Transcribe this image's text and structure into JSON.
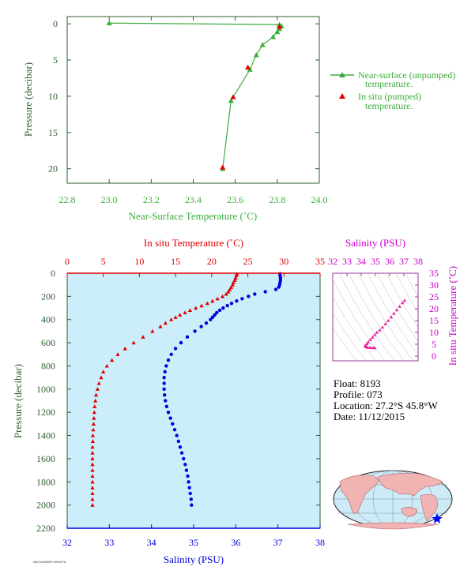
{
  "colors": {
    "green": "#3cae3c",
    "red": "#e00000",
    "blue": "#0000dd",
    "magenta": "#cc00cc",
    "pink": "#ee2299",
    "panel": "#cceefa",
    "axis": "#2f5f2f",
    "land": "#f2b3b3",
    "ocean": "#cdebf7"
  },
  "info": {
    "float": "Float:  8193",
    "profile": "Profile:  073",
    "location": "Location:  27.2°S  45.8°W",
    "date": "Date:  11/12/2015"
  },
  "footer_code": "AW7#2008P0 0000078",
  "chart_data": [
    {
      "type": "line",
      "xlabel": "Near-Surface Temperature (˚C)",
      "ylabel": "Pressure (decibar)",
      "xlim": [
        22.8,
        24.0
      ],
      "ylim": [
        22,
        -1
      ],
      "xticks": [
        "22.8",
        "23.0",
        "23.2",
        "23.4",
        "23.6",
        "23.8",
        "24.0"
      ],
      "yticks": [
        "0",
        "5",
        "10",
        "15",
        "20"
      ],
      "legend_position": "right",
      "series": [
        {
          "name": "Near-surface (unpumped) temperature.",
          "marker": "triangle-line",
          "x": [
            23.0,
            23.81,
            23.82,
            23.81,
            23.8,
            23.78,
            23.73,
            23.7,
            23.67,
            23.58,
            23.54
          ],
          "y": [
            -0.1,
            0.1,
            0.3,
            0.7,
            1.1,
            1.8,
            2.9,
            4.3,
            6.3,
            10.6,
            20.0
          ]
        },
        {
          "name": "In situ (pumped) temperature.",
          "marker": "triangle",
          "x": [
            23.81,
            23.66,
            23.59,
            23.54
          ],
          "y": [
            0.4,
            6.0,
            10.1,
            19.8
          ]
        }
      ]
    },
    {
      "type": "scatter",
      "x_top_label": "In situ Temperature (˚C)",
      "x_bottom_label": "Salinity (PSU)",
      "ylabel": "Pressure (decibar)",
      "ylim": [
        2200,
        0
      ],
      "temp_xlim": [
        0,
        35
      ],
      "sal_xlim": [
        32,
        38
      ],
      "temp_ticks": [
        "0",
        "5",
        "10",
        "15",
        "20",
        "25",
        "30",
        "35"
      ],
      "sal_ticks": [
        "32",
        "33",
        "34",
        "35",
        "36",
        "37",
        "38"
      ],
      "yticks": [
        "0",
        "200",
        "400",
        "600",
        "800",
        "1000",
        "1200",
        "1400",
        "1600",
        "1800",
        "2000",
        "2200"
      ],
      "temperature": {
        "pressure": [
          5,
          20,
          40,
          60,
          80,
          100,
          120,
          140,
          160,
          180,
          200,
          220,
          240,
          260,
          280,
          300,
          320,
          340,
          360,
          380,
          400,
          430,
          460,
          500,
          550,
          600,
          650,
          700,
          750,
          800,
          850,
          900,
          950,
          1000,
          1050,
          1100,
          1150,
          1200,
          1250,
          1300,
          1350,
          1400,
          1450,
          1500,
          1550,
          1600,
          1650,
          1700,
          1750,
          1800,
          1850,
          1900,
          1950,
          2000
        ],
        "values": [
          23.5,
          23.4,
          23.3,
          23.2,
          23.0,
          22.9,
          22.7,
          22.5,
          22.3,
          22.0,
          21.5,
          20.8,
          20.1,
          19.4,
          18.6,
          17.8,
          17.0,
          16.3,
          15.6,
          15.0,
          14.4,
          13.6,
          12.9,
          11.8,
          10.5,
          9.2,
          8.0,
          7.0,
          6.2,
          5.5,
          5.0,
          4.7,
          4.4,
          4.2,
          4.0,
          3.9,
          3.8,
          3.75,
          3.7,
          3.65,
          3.6,
          3.55,
          3.55,
          3.5,
          3.5,
          3.5,
          3.5,
          3.5,
          3.5,
          3.5,
          3.5,
          3.5,
          3.5,
          3.5
        ]
      },
      "salinity": {
        "pressure": [
          5,
          20,
          40,
          60,
          80,
          100,
          120,
          140,
          160,
          180,
          200,
          220,
          240,
          260,
          280,
          300,
          320,
          340,
          360,
          380,
          400,
          430,
          460,
          500,
          550,
          600,
          650,
          700,
          750,
          800,
          850,
          900,
          950,
          1000,
          1050,
          1100,
          1150,
          1200,
          1250,
          1300,
          1350,
          1400,
          1450,
          1500,
          1550,
          1600,
          1650,
          1700,
          1750,
          1800,
          1850,
          1900,
          1950,
          2000
        ],
        "values": [
          37.05,
          37.05,
          37.06,
          37.06,
          37.05,
          37.04,
          37.02,
          36.95,
          36.7,
          36.45,
          36.3,
          36.15,
          36.02,
          35.9,
          35.8,
          35.7,
          35.62,
          35.55,
          35.5,
          35.45,
          35.4,
          35.3,
          35.18,
          35.03,
          34.85,
          34.7,
          34.57,
          34.47,
          34.4,
          34.35,
          34.32,
          34.3,
          34.3,
          34.3,
          34.31,
          34.33,
          34.36,
          34.4,
          34.45,
          34.5,
          34.55,
          34.6,
          34.64,
          34.68,
          34.72,
          34.76,
          34.8,
          34.83,
          34.86,
          34.88,
          34.9,
          34.92,
          34.94,
          34.95
        ]
      }
    },
    {
      "type": "scatter",
      "title": "Salinity (PSU)",
      "ylabel": "In situ Temperature (˚C)",
      "xlim": [
        32,
        38
      ],
      "ylim": [
        -2,
        35
      ],
      "xticks": [
        "32",
        "33",
        "34",
        "35",
        "36",
        "37",
        "38"
      ],
      "yticks": [
        "0",
        "5",
        "10",
        "15",
        "20",
        "25",
        "30",
        "35"
      ],
      "x": [
        37.05,
        36.9,
        36.7,
        36.5,
        36.3,
        36.1,
        35.9,
        35.7,
        35.5,
        35.3,
        35.1,
        34.95,
        34.8,
        34.65,
        34.5,
        34.4,
        34.3,
        34.3,
        34.35,
        34.45,
        34.6,
        34.75,
        34.9,
        34.95
      ],
      "y": [
        23.5,
        22.5,
        21.0,
        19.5,
        18.0,
        16.5,
        15.0,
        13.6,
        12.2,
        11.0,
        10.0,
        9.0,
        8.0,
        7.0,
        6.0,
        5.2,
        4.6,
        4.2,
        3.9,
        3.7,
        3.6,
        3.55,
        3.5,
        3.5
      ]
    }
  ]
}
